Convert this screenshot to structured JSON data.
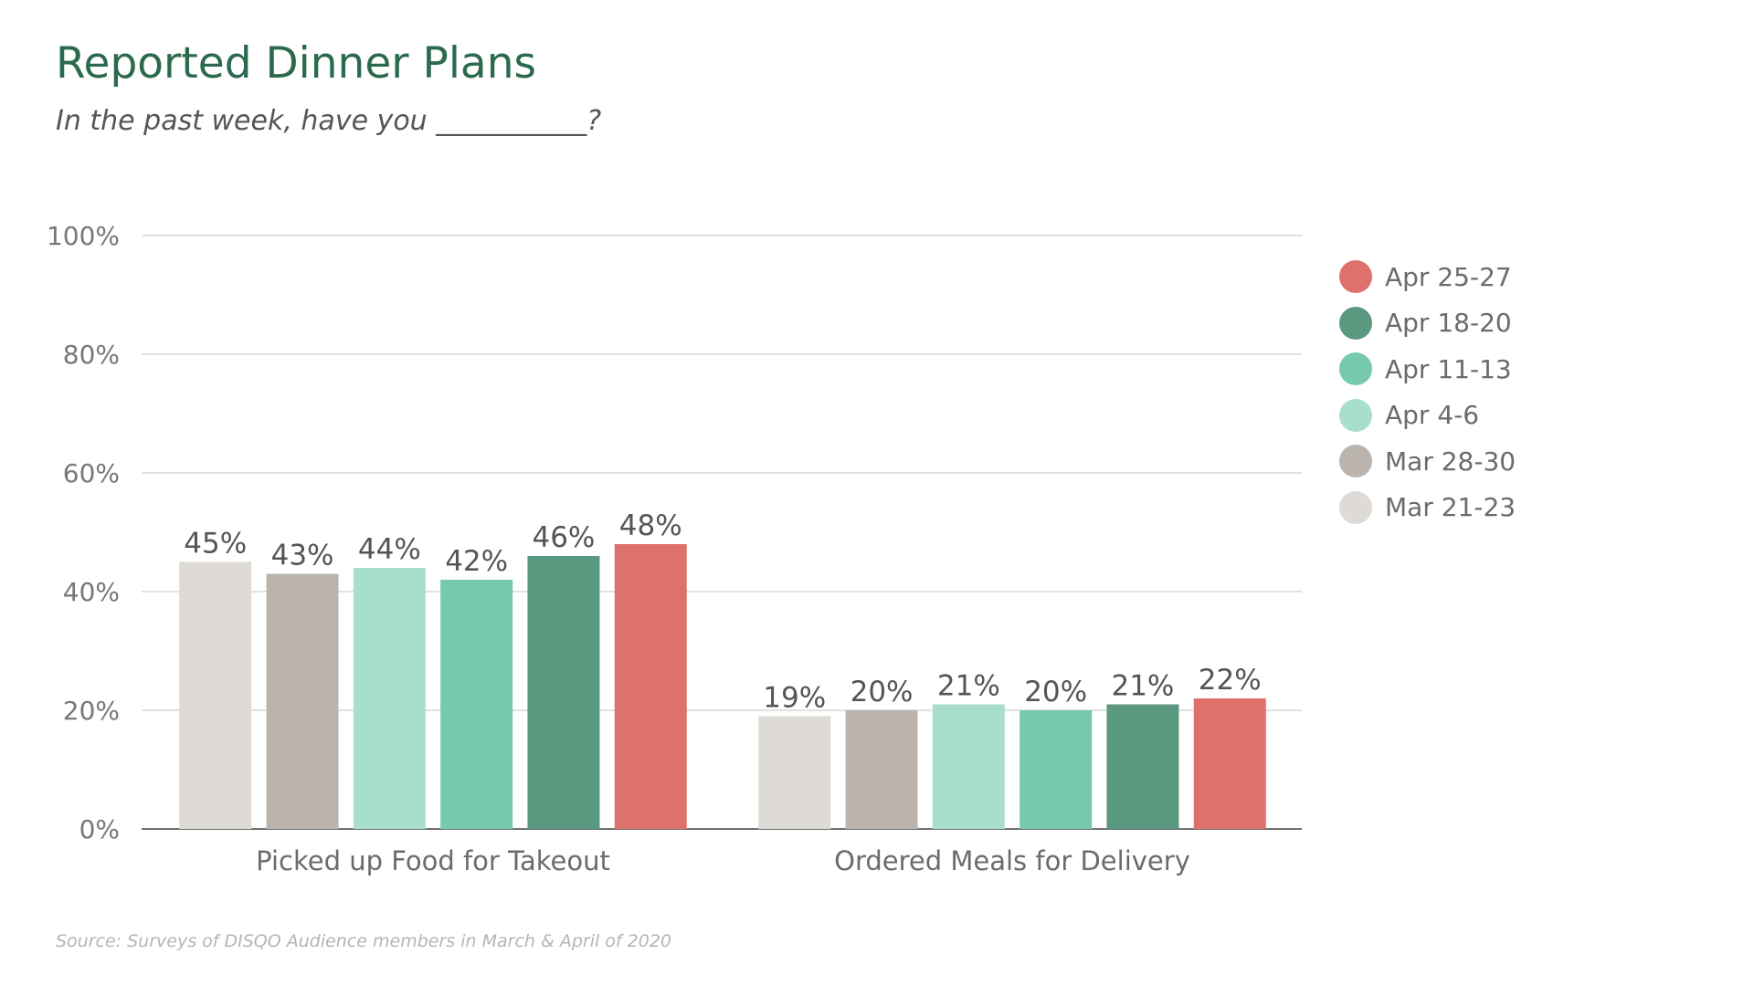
{
  "title": "Reported Dinner Plans",
  "subtitle": "In the past week, have you ___________?",
  "source": "Source: Surveys of DISQO Audience members in March & April of 2020",
  "colors": {
    "title": "#2b6a4c",
    "Mar 21-23": "#dedad6",
    "Mar 28-30": "#bbb4ae",
    "Apr 4-6": "#a8dfcb",
    "Apr 11-13": "#76c9ad",
    "Apr 18-20": "#5a9880",
    "Apr 25-27": "#de716b"
  },
  "chart_data": {
    "type": "bar",
    "categories": [
      "Picked up Food for Takeout",
      "Ordered Meals for Delivery"
    ],
    "series": [
      {
        "name": "Mar 21-23",
        "values": [
          45,
          19
        ],
        "labels": [
          "45%",
          "19%"
        ]
      },
      {
        "name": "Mar 28-30",
        "values": [
          43,
          20
        ],
        "labels": [
          "43%",
          "20%"
        ]
      },
      {
        "name": "Apr 4-6",
        "values": [
          44,
          21
        ],
        "labels": [
          "44%",
          "21%"
        ]
      },
      {
        "name": "Apr 11-13",
        "values": [
          42,
          20
        ],
        "labels": [
          "42%",
          "20%"
        ]
      },
      {
        "name": "Apr 18-20",
        "values": [
          46,
          21
        ],
        "labels": [
          "46%",
          "21%"
        ]
      },
      {
        "name": "Apr 25-27",
        "values": [
          48,
          22
        ],
        "labels": [
          "48%",
          "22%"
        ]
      }
    ],
    "ylim": [
      0,
      100
    ],
    "yticks": [
      0,
      20,
      40,
      60,
      80,
      100
    ],
    "ytick_labels": [
      "0%",
      "20%",
      "40%",
      "60%",
      "80%",
      "100%"
    ],
    "grid": true,
    "legend_position": "right",
    "legend_order": [
      "Apr 25-27",
      "Apr 18-20",
      "Apr 11-13",
      "Apr 4-6",
      "Mar 28-30",
      "Mar 21-23"
    ]
  }
}
